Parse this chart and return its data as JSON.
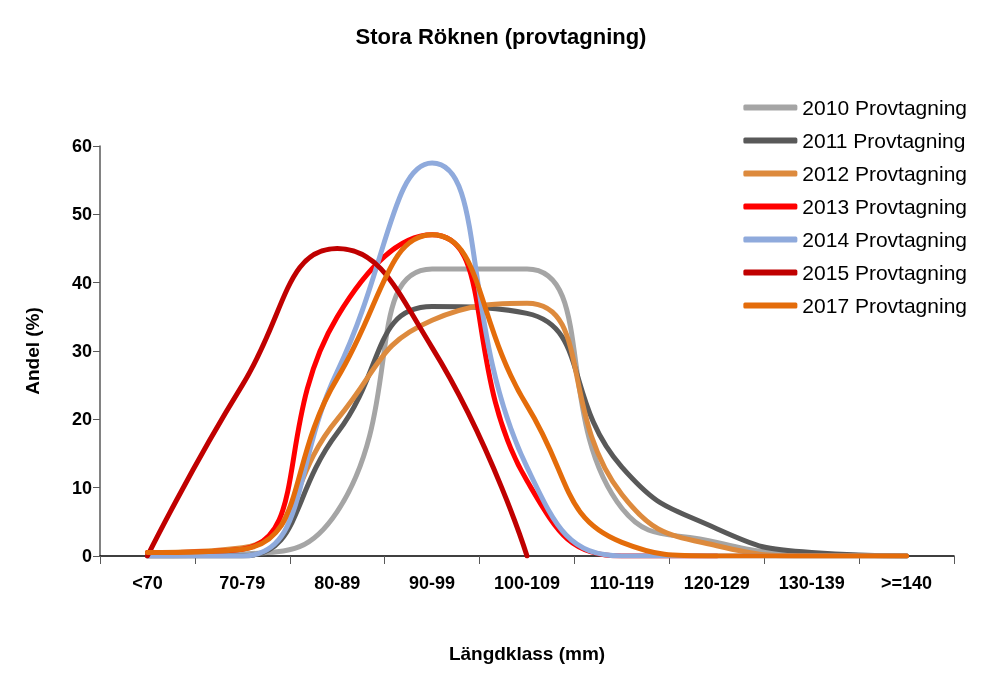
{
  "chart_data": {
    "type": "line",
    "title": "Stora Röknen (provtagning)",
    "xlabel": "Längdklass (mm)",
    "ylabel": "Andel (%)",
    "categories": [
      "<70",
      "70-79",
      "80-89",
      "90-99",
      "100-109",
      "110-119",
      "120-129",
      "130-139",
      ">=140"
    ],
    "series": [
      {
        "name": "2010 Provtagning",
        "color": "#a5a5a5",
        "values": [
          0,
          0.3,
          6.5,
          42,
          42,
          7,
          2,
          0.3,
          0
        ]
      },
      {
        "name": "2011 Provtagning",
        "color": "#595959",
        "values": [
          0,
          0,
          18,
          36.5,
          35.5,
          13,
          4,
          0.5,
          0
        ]
      },
      {
        "name": "2012 Provtagning",
        "color": "#dd8a3d",
        "values": [
          0.5,
          1.2,
          20,
          34.5,
          37,
          9,
          1.5,
          0,
          0
        ]
      },
      {
        "name": "2013 Provtagning",
        "color": "#ff0000",
        "values": [
          0.5,
          1,
          35,
          47,
          11,
          0,
          0,
          null,
          null
        ]
      },
      {
        "name": "2014 Provtagning",
        "color": "#8faadc",
        "values": [
          0,
          0,
          27,
          57.5,
          13,
          0,
          0,
          0,
          0
        ]
      },
      {
        "name": "2015 Provtagning",
        "color": "#c00000",
        "values": [
          0,
          25,
          45,
          30.5,
          0,
          null,
          null,
          null,
          null
        ]
      },
      {
        "name": "2017 Provtagning",
        "color": "#e46c0a",
        "values": [
          0.5,
          1,
          26,
          47,
          22,
          2,
          0,
          0,
          0
        ]
      }
    ],
    "ylim": [
      0,
      60
    ],
    "yticks": [
      0,
      10,
      20,
      30,
      40,
      50,
      60
    ],
    "grid": false,
    "legend": "top right",
    "marker": "none",
    "line_style": "solid"
  }
}
